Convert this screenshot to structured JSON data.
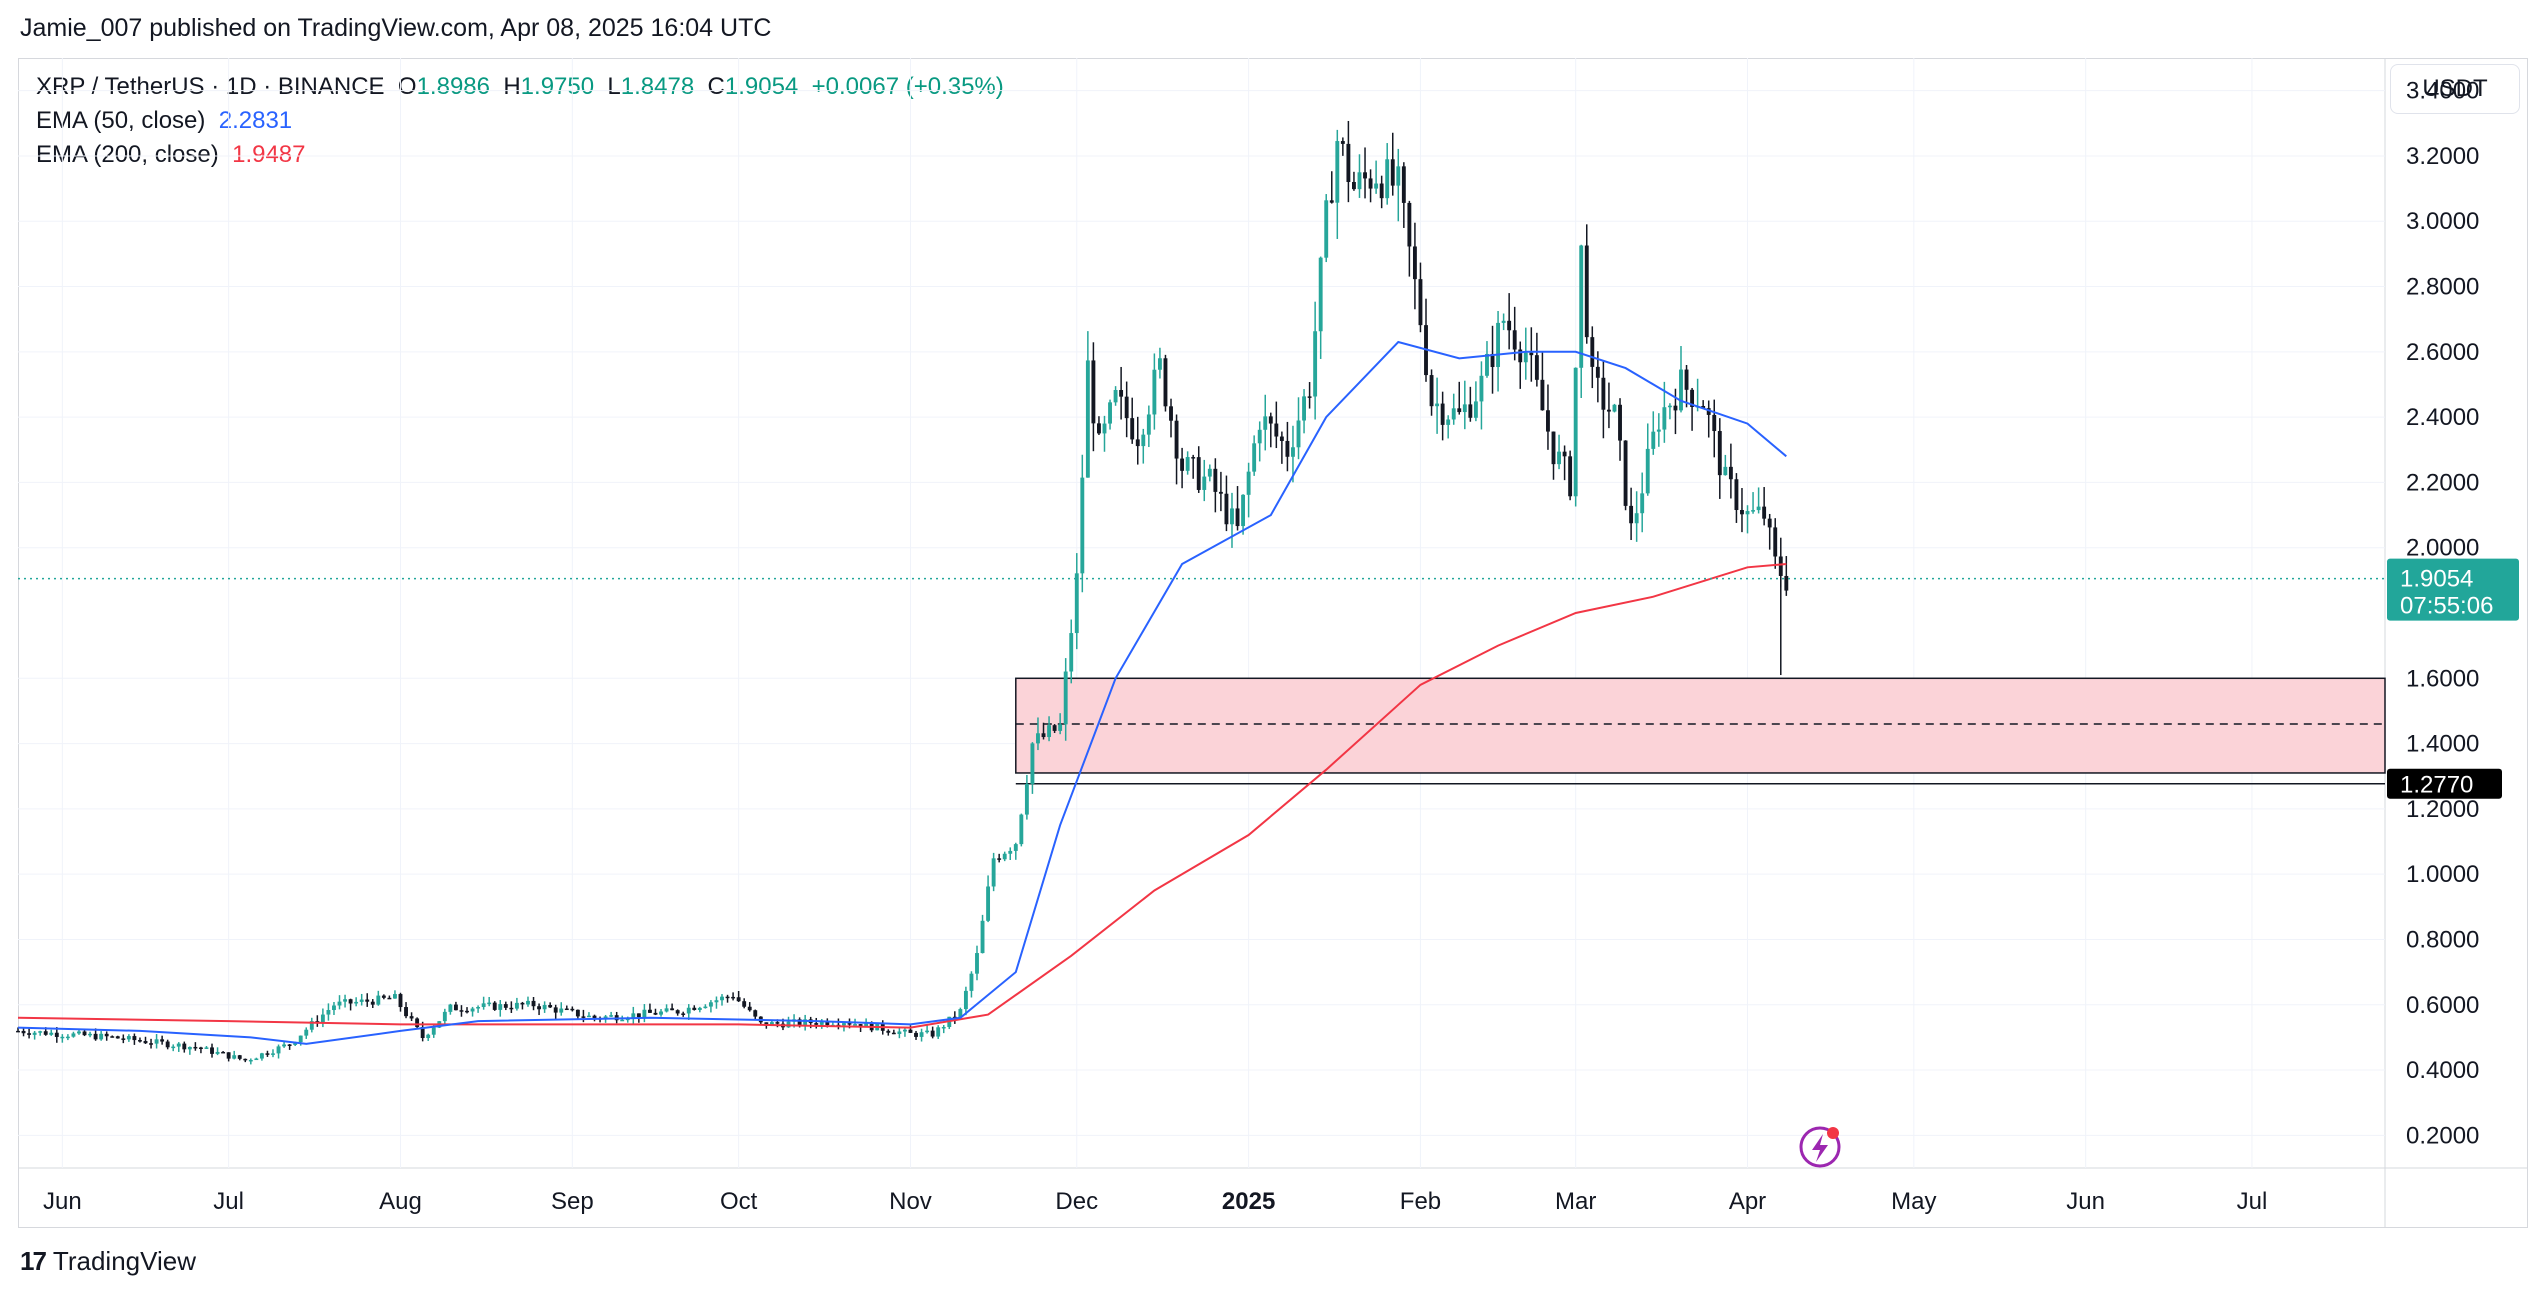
{
  "header": {
    "published_by": "Jamie_007 published on TradingView.com, Apr 08, 2025 16:04 UTC"
  },
  "legend": {
    "symbol": "XRP / TetherUS · 1D · BINANCE",
    "open_label": "O",
    "open": "1.8986",
    "high_label": "H",
    "high": "1.9750",
    "low_label": "L",
    "low": "1.8478",
    "close_label": "C",
    "close": "1.9054",
    "change": "+0.0067 (+0.35%)",
    "ema50_label": "EMA (50, close)",
    "ema50_value": "2.2831",
    "ema200_label": "EMA (200, close)",
    "ema200_value": "1.9487"
  },
  "currency_button": "USDT",
  "footer": {
    "brand": "TradingView",
    "brand_mark": "17"
  },
  "colors": {
    "up": "#26a69a",
    "down": "#131722",
    "ema50": "#2962ff",
    "ema200": "#f23645",
    "zone_fill": "#fbd3d8",
    "price_tag": "#22a69a",
    "level_tag": "#000000"
  },
  "chart_data": {
    "type": "candlestick",
    "ylim": [
      0.1,
      3.5
    ],
    "y_ticks": [
      "3.4000",
      "3.2000",
      "3.0000",
      "2.8000",
      "2.6000",
      "2.4000",
      "2.2000",
      "2.0000",
      "1.6000",
      "1.4000",
      "1.2000",
      "1.0000",
      "0.8000",
      "0.6000",
      "0.4000",
      "0.2000"
    ],
    "x_ticks": [
      "Jun",
      "Jul",
      "Aug",
      "Sep",
      "Oct",
      "Nov",
      "Dec",
      "2025",
      "Feb",
      "Mar",
      "Apr",
      "May",
      "Jun",
      "Jul"
    ],
    "x_tick_dates": [
      "2024-06-01",
      "2024-07-01",
      "2024-08-01",
      "2024-09-01",
      "2024-10-01",
      "2024-11-01",
      "2024-12-01",
      "2025-01-01",
      "2025-02-01",
      "2025-03-01",
      "2025-04-01",
      "2025-05-01",
      "2025-06-01",
      "2025-07-01"
    ],
    "x_range": [
      "2024-05-24",
      "2025-07-25"
    ],
    "current_price": {
      "value": 1.9054,
      "label": "1.9054",
      "countdown": "07:55:06"
    },
    "level_line": {
      "value": 1.277,
      "label": "1.2770"
    },
    "zone": {
      "start": "2024-11-20",
      "top": 1.6,
      "bottom": 1.31,
      "mid": 1.46
    },
    "ema50_path": [
      [
        "2024-05-24",
        0.53
      ],
      [
        "2024-06-15",
        0.52
      ],
      [
        "2024-07-05",
        0.5
      ],
      [
        "2024-07-15",
        0.48
      ],
      [
        "2024-08-01",
        0.52
      ],
      [
        "2024-08-15",
        0.55
      ],
      [
        "2024-09-15",
        0.56
      ],
      [
        "2024-10-15",
        0.55
      ],
      [
        "2024-11-01",
        0.54
      ],
      [
        "2024-11-10",
        0.56
      ],
      [
        "2024-11-20",
        0.7
      ],
      [
        "2024-11-28",
        1.15
      ],
      [
        "2024-12-08",
        1.6
      ],
      [
        "2024-12-20",
        1.95
      ],
      [
        "2025-01-05",
        2.1
      ],
      [
        "2025-01-15",
        2.4
      ],
      [
        "2025-01-28",
        2.63
      ],
      [
        "2025-02-08",
        2.58
      ],
      [
        "2025-02-20",
        2.6
      ],
      [
        "2025-03-01",
        2.6
      ],
      [
        "2025-03-10",
        2.55
      ],
      [
        "2025-03-20",
        2.45
      ],
      [
        "2025-04-01",
        2.38
      ],
      [
        "2025-04-08",
        2.28
      ]
    ],
    "ema200_path": [
      [
        "2024-05-24",
        0.56
      ],
      [
        "2024-07-01",
        0.55
      ],
      [
        "2024-08-01",
        0.54
      ],
      [
        "2024-09-01",
        0.54
      ],
      [
        "2024-10-01",
        0.54
      ],
      [
        "2024-11-01",
        0.53
      ],
      [
        "2024-11-15",
        0.57
      ],
      [
        "2024-11-30",
        0.75
      ],
      [
        "2024-12-15",
        0.95
      ],
      [
        "2025-01-01",
        1.12
      ],
      [
        "2025-01-15",
        1.32
      ],
      [
        "2025-02-01",
        1.58
      ],
      [
        "2025-02-15",
        1.7
      ],
      [
        "2025-03-01",
        1.8
      ],
      [
        "2025-03-15",
        1.85
      ],
      [
        "2025-04-01",
        1.94
      ],
      [
        "2025-04-08",
        1.95
      ]
    ],
    "close_path": [
      [
        "2024-05-24",
        0.52
      ],
      [
        "2024-06-10",
        0.5
      ],
      [
        "2024-06-25",
        0.47
      ],
      [
        "2024-07-04",
        0.43
      ],
      [
        "2024-07-12",
        0.48
      ],
      [
        "2024-07-20",
        0.6
      ],
      [
        "2024-07-31",
        0.62
      ],
      [
        "2024-08-05",
        0.5
      ],
      [
        "2024-08-10",
        0.59
      ],
      [
        "2024-08-25",
        0.6
      ],
      [
        "2024-09-05",
        0.56
      ],
      [
        "2024-09-20",
        0.58
      ],
      [
        "2024-09-30",
        0.63
      ],
      [
        "2024-10-05",
        0.54
      ],
      [
        "2024-10-20",
        0.55
      ],
      [
        "2024-11-01",
        0.51
      ],
      [
        "2024-11-05",
        0.51
      ],
      [
        "2024-11-10",
        0.58
      ],
      [
        "2024-11-13",
        0.75
      ],
      [
        "2024-11-16",
        1.05
      ],
      [
        "2024-11-20",
        1.1
      ],
      [
        "2024-11-23",
        1.4
      ],
      [
        "2024-11-28",
        1.45
      ],
      [
        "2024-12-01",
        1.9
      ],
      [
        "2024-12-03",
        2.55
      ],
      [
        "2024-12-05",
        2.3
      ],
      [
        "2024-12-08",
        2.45
      ],
      [
        "2024-12-12",
        2.35
      ],
      [
        "2024-12-16",
        2.55
      ],
      [
        "2024-12-20",
        2.25
      ],
      [
        "2024-12-25",
        2.2
      ],
      [
        "2024-12-30",
        2.05
      ],
      [
        "2025-01-03",
        2.4
      ],
      [
        "2025-01-08",
        2.3
      ],
      [
        "2025-01-12",
        2.5
      ],
      [
        "2025-01-15",
        3.0
      ],
      [
        "2025-01-17",
        3.25
      ],
      [
        "2025-01-20",
        3.1
      ],
      [
        "2025-01-24",
        3.15
      ],
      [
        "2025-01-28",
        3.1
      ],
      [
        "2025-02-01",
        2.7
      ],
      [
        "2025-02-03",
        2.45
      ],
      [
        "2025-02-08",
        2.4
      ],
      [
        "2025-02-12",
        2.5
      ],
      [
        "2025-02-16",
        2.7
      ],
      [
        "2025-02-20",
        2.6
      ],
      [
        "2025-02-25",
        2.3
      ],
      [
        "2025-02-28",
        2.2
      ],
      [
        "2025-03-02",
        2.9
      ],
      [
        "2025-03-04",
        2.5
      ],
      [
        "2025-03-08",
        2.4
      ],
      [
        "2025-03-11",
        2.05
      ],
      [
        "2025-03-16",
        2.4
      ],
      [
        "2025-03-20",
        2.5
      ],
      [
        "2025-03-24",
        2.45
      ],
      [
        "2025-03-28",
        2.2
      ],
      [
        "2025-04-01",
        2.1
      ],
      [
        "2025-04-04",
        2.1
      ],
      [
        "2025-04-06",
        1.95
      ],
      [
        "2025-04-08",
        1.9
      ]
    ]
  }
}
